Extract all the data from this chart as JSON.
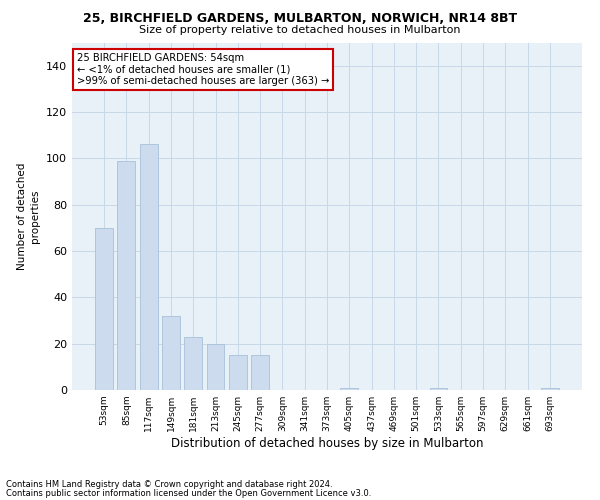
{
  "title_line1": "25, BIRCHFIELD GARDENS, MULBARTON, NORWICH, NR14 8BT",
  "title_line2": "Size of property relative to detached houses in Mulbarton",
  "xlabel": "Distribution of detached houses by size in Mulbarton",
  "ylabel": "Number of detached\nproperties",
  "bar_color": "#ccdcee",
  "bar_edge_color": "#a8c0d8",
  "categories": [
    "53sqm",
    "85sqm",
    "117sqm",
    "149sqm",
    "181sqm",
    "213sqm",
    "245sqm",
    "277sqm",
    "309sqm",
    "341sqm",
    "373sqm",
    "405sqm",
    "437sqm",
    "469sqm",
    "501sqm",
    "533sqm",
    "565sqm",
    "597sqm",
    "629sqm",
    "661sqm",
    "693sqm"
  ],
  "values": [
    70,
    99,
    106,
    32,
    23,
    20,
    15,
    15,
    0,
    0,
    0,
    1,
    0,
    0,
    0,
    1,
    0,
    0,
    0,
    0,
    1
  ],
  "ylim": [
    0,
    150
  ],
  "yticks": [
    0,
    20,
    40,
    60,
    80,
    100,
    120,
    140
  ],
  "annotation_text": "25 BIRCHFIELD GARDENS: 54sqm\n← <1% of detached houses are smaller (1)\n>99% of semi-detached houses are larger (363) →",
  "annotation_box_color": "#ffffff",
  "annotation_box_edge_color": "#cc0000",
  "grid_color": "#c8d8e8",
  "bg_color": "#e8f0f8",
  "footnote1": "Contains HM Land Registry data © Crown copyright and database right 2024.",
  "footnote2": "Contains public sector information licensed under the Open Government Licence v3.0."
}
